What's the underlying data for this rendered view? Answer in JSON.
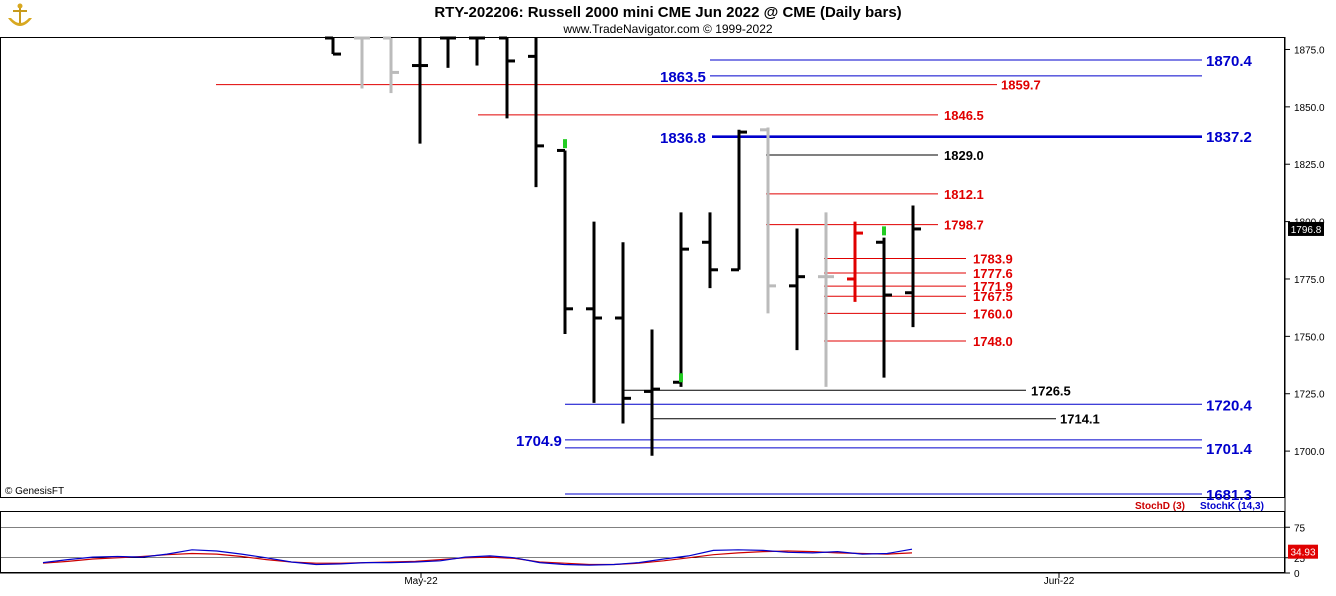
{
  "header": {
    "title": "RTY-202206:  Russell 2000 mini CME Jun 2022 @ CME  (Daily bars)",
    "subtitle": "www.TradeNavigator.com © 1999-2022"
  },
  "copyright": "© GenesisFT",
  "colors": {
    "price_bar": "#000000",
    "gray_bar": "#bbbbbb",
    "red_bar": "#e00000",
    "green_tick": "#22cc22",
    "level_blue": "#0000cc",
    "level_red": "#e00000",
    "level_black": "#000000",
    "stoch_d": "#cc0000",
    "stoch_k": "#0000cc",
    "last_price_bg": "#000000",
    "stoch_value_bg": "#e00000"
  },
  "chart_data": [
    {
      "type": "ohlc",
      "title": "RTY-202206:  Russell 2000 mini CME Jun 2022 @ CME  (Daily bars)",
      "y_axis": {
        "range": [
          1680,
          1880
        ],
        "ticks": [
          "1700.0",
          "1725.0",
          "1750.0",
          "1775.0",
          "1800.0",
          "1825.0",
          "1850.0",
          "1875.0"
        ]
      },
      "x_axis": {
        "ticks": [
          "May-22",
          "Jun-22"
        ]
      },
      "last_price": "1796.8",
      "bars": [
        {
          "o": 1880,
          "h": 1880,
          "l": 1873,
          "c": 1873,
          "color": "black"
        },
        {
          "o": 1880,
          "h": 1880,
          "l": 1858,
          "c": 1880,
          "color": "gray"
        },
        {
          "o": 1880,
          "h": 1880,
          "l": 1856,
          "c": 1865,
          "color": "gray"
        },
        {
          "o": 1868,
          "h": 1880,
          "l": 1834,
          "c": 1868,
          "color": "black"
        },
        {
          "o": 1880,
          "h": 1880,
          "l": 1867,
          "c": 1880,
          "color": "black"
        },
        {
          "o": 1880,
          "h": 1880,
          "l": 1868,
          "c": 1880,
          "color": "black"
        },
        {
          "o": 1880,
          "h": 1880,
          "l": 1845,
          "c": 1870,
          "color": "black"
        },
        {
          "o": 1872,
          "h": 1880,
          "l": 1815,
          "c": 1833,
          "color": "black"
        },
        {
          "o": 1831,
          "h": 1831,
          "l": 1751,
          "c": 1762,
          "color": "black"
        },
        {
          "o": 1762,
          "h": 1800,
          "l": 1721,
          "c": 1758,
          "color": "black"
        },
        {
          "o": 1758,
          "h": 1791,
          "l": 1712,
          "c": 1723,
          "color": "black"
        },
        {
          "o": 1726,
          "h": 1753,
          "l": 1698,
          "c": 1727,
          "color": "black"
        },
        {
          "o": 1730,
          "h": 1804,
          "l": 1728,
          "c": 1788,
          "color": "black"
        },
        {
          "o": 1791,
          "h": 1804,
          "l": 1771,
          "c": 1779,
          "color": "black"
        },
        {
          "o": 1779,
          "h": 1840,
          "l": 1779,
          "c": 1839,
          "color": "black"
        },
        {
          "o": 1840,
          "h": 1841,
          "l": 1760,
          "c": 1772,
          "color": "gray"
        },
        {
          "o": 1772,
          "h": 1797,
          "l": 1744,
          "c": 1776,
          "color": "black"
        },
        {
          "o": 1776,
          "h": 1804,
          "l": 1728,
          "c": 1776,
          "color": "gray"
        },
        {
          "o": 1775,
          "h": 1800,
          "l": 1765,
          "c": 1795,
          "color": "red"
        },
        {
          "o": 1791,
          "h": 1793,
          "l": 1732,
          "c": 1768,
          "color": "black"
        },
        {
          "o": 1769,
          "h": 1807,
          "l": 1754,
          "c": 1796.8,
          "color": "black"
        }
      ],
      "levels": [
        {
          "value": 1870.4,
          "label": "1870.4",
          "color": "blue",
          "side": "right"
        },
        {
          "value": 1863.5,
          "label": "1863.5",
          "color": "blue",
          "side": "left"
        },
        {
          "value": 1859.7,
          "label": "1859.7",
          "color": "red",
          "side": "right"
        },
        {
          "value": 1846.5,
          "label": "1846.5",
          "color": "red",
          "side": "right"
        },
        {
          "value": 1837.2,
          "label": "1837.2",
          "color": "blue",
          "side": "right"
        },
        {
          "value": 1836.8,
          "label": "1836.8",
          "color": "blue",
          "side": "left"
        },
        {
          "value": 1829.0,
          "label": "1829.0",
          "color": "black",
          "side": "right"
        },
        {
          "value": 1812.1,
          "label": "1812.1",
          "color": "red",
          "side": "right"
        },
        {
          "value": 1798.7,
          "label": "1798.7",
          "color": "red",
          "side": "right"
        },
        {
          "value": 1783.9,
          "label": "1783.9",
          "color": "red",
          "side": "right"
        },
        {
          "value": 1777.6,
          "label": "1777.6",
          "color": "red",
          "side": "right"
        },
        {
          "value": 1771.9,
          "label": "1771.9",
          "color": "red",
          "side": "right"
        },
        {
          "value": 1767.5,
          "label": "1767.5",
          "color": "red",
          "side": "right"
        },
        {
          "value": 1760.0,
          "label": "1760.0",
          "color": "red",
          "side": "right"
        },
        {
          "value": 1748.0,
          "label": "1748.0",
          "color": "red",
          "side": "right"
        },
        {
          "value": 1726.5,
          "label": "1726.5",
          "color": "black",
          "side": "right"
        },
        {
          "value": 1720.4,
          "label": "1720.4",
          "color": "blue",
          "side": "right"
        },
        {
          "value": 1714.1,
          "label": "1714.1",
          "color": "black",
          "side": "right"
        },
        {
          "value": 1704.9,
          "label": "1704.9",
          "color": "blue",
          "side": "left"
        },
        {
          "value": 1701.4,
          "label": "1701.4",
          "color": "blue",
          "side": "right"
        },
        {
          "value": 1681.3,
          "label": "1681.3",
          "color": "blue",
          "side": "right"
        }
      ]
    },
    {
      "type": "line",
      "y_axis": {
        "range": [
          0,
          100
        ],
        "ticks": [
          "0",
          "25",
          "75"
        ]
      },
      "legend": [
        "StochD (3)",
        "StochK (14,3)"
      ],
      "last_value": "34.93",
      "series": [
        {
          "name": "StochD (3)",
          "color": "red",
          "values": [
            16,
            19,
            23,
            25,
            27,
            30,
            32,
            31,
            27,
            22,
            18,
            16,
            16,
            17,
            18,
            19,
            22,
            25,
            26,
            24,
            18,
            16,
            14,
            14,
            16,
            20,
            25,
            30,
            33,
            35,
            36,
            35,
            33,
            32,
            31,
            33
          ]
        },
        {
          "name": "StochK (14,3)",
          "color": "blue",
          "values": [
            17,
            22,
            26,
            27,
            26,
            31,
            38,
            36,
            31,
            25,
            18,
            14,
            15,
            17,
            17,
            18,
            20,
            26,
            28,
            25,
            17,
            14,
            13,
            14,
            17,
            23,
            28,
            37,
            38,
            37,
            34,
            33,
            35,
            31,
            32,
            39
          ]
        }
      ]
    }
  ]
}
